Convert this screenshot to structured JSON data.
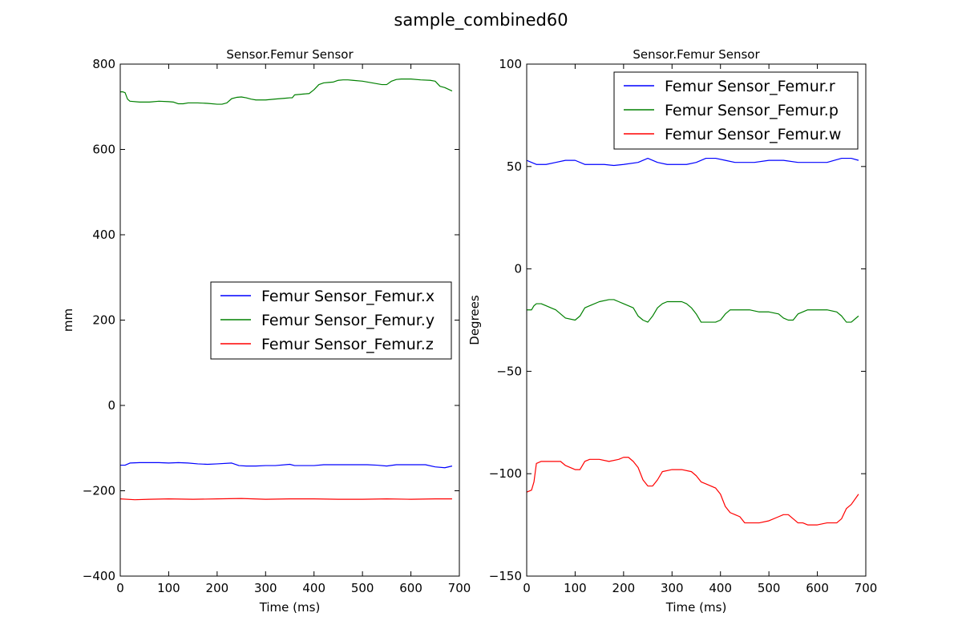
{
  "figure": {
    "title": "sample_combined60"
  },
  "chart_data": [
    {
      "type": "line",
      "title": "Sensor.Femur Sensor",
      "xlabel": "Time (ms)",
      "ylabel": "mm",
      "xlim": [
        0,
        700
      ],
      "ylim": [
        -400,
        800
      ],
      "xticks": [
        0,
        100,
        200,
        300,
        400,
        500,
        600,
        700
      ],
      "yticks": [
        -400,
        -200,
        0,
        200,
        400,
        600,
        800
      ],
      "xtick_labels": [
        "0",
        "100",
        "200",
        "300",
        "400",
        "500",
        "600",
        "700"
      ],
      "ytick_labels": [
        "−400",
        "−200",
        "0",
        "200",
        "400",
        "600",
        "800"
      ],
      "grid": false,
      "legend_position": "center-right",
      "series": [
        {
          "name": "Femur Sensor_Femur.x",
          "color": "#0000ff",
          "x": [
            0,
            10,
            20,
            40,
            60,
            80,
            100,
            120,
            140,
            160,
            180,
            200,
            230,
            245,
            260,
            280,
            300,
            320,
            350,
            360,
            380,
            400,
            420,
            450,
            480,
            510,
            530,
            550,
            570,
            600,
            630,
            650,
            670,
            685
          ],
          "y": [
            -140,
            -140,
            -135,
            -134,
            -134,
            -134,
            -135,
            -134,
            -135,
            -137,
            -138,
            -137,
            -135,
            -141,
            -142,
            -142,
            -141,
            -141,
            -138,
            -141,
            -141,
            -141,
            -139,
            -139,
            -139,
            -139,
            -140,
            -142,
            -139,
            -139,
            -139,
            -144,
            -146,
            -142
          ]
        },
        {
          "name": "Femur Sensor_Femur.y",
          "color": "#008000",
          "x": [
            0,
            5,
            10,
            15,
            20,
            40,
            60,
            80,
            100,
            110,
            120,
            130,
            140,
            160,
            180,
            200,
            210,
            220,
            230,
            240,
            250,
            260,
            270,
            280,
            300,
            320,
            340,
            350,
            355,
            360,
            380,
            390,
            400,
            410,
            420,
            430,
            440,
            450,
            460,
            470,
            480,
            500,
            520,
            540,
            550,
            560,
            570,
            580,
            600,
            620,
            640,
            650,
            660,
            670,
            685
          ],
          "y": [
            735,
            735,
            733,
            718,
            713,
            711,
            711,
            713,
            712,
            711,
            707,
            707,
            709,
            709,
            708,
            706,
            706,
            709,
            719,
            722,
            723,
            721,
            718,
            716,
            716,
            718,
            720,
            721,
            721,
            728,
            730,
            731,
            740,
            752,
            756,
            757,
            758,
            762,
            763,
            763,
            762,
            760,
            756,
            752,
            752,
            760,
            764,
            765,
            765,
            763,
            762,
            760,
            748,
            745,
            737
          ]
        },
        {
          "name": "Femur Sensor_Femur.z",
          "color": "#ff0000",
          "x": [
            0,
            30,
            60,
            100,
            150,
            200,
            250,
            300,
            350,
            400,
            450,
            500,
            550,
            600,
            650,
            685
          ],
          "y": [
            -219,
            -221,
            -220,
            -219,
            -220,
            -219,
            -218,
            -220,
            -219,
            -219,
            -220,
            -220,
            -219,
            -220,
            -219,
            -219
          ]
        }
      ]
    },
    {
      "type": "line",
      "title": "Sensor.Femur Sensor",
      "xlabel": "Time (ms)",
      "ylabel": "Degrees",
      "xlim": [
        0,
        700
      ],
      "ylim": [
        -150,
        100
      ],
      "xticks": [
        0,
        100,
        200,
        300,
        400,
        500,
        600,
        700
      ],
      "yticks": [
        -150,
        -100,
        -50,
        0,
        50,
        100
      ],
      "xtick_labels": [
        "0",
        "100",
        "200",
        "300",
        "400",
        "500",
        "600",
        "700"
      ],
      "ytick_labels": [
        "−150",
        "−100",
        "−50",
        "0",
        "50",
        "100"
      ],
      "grid": false,
      "legend_position": "top-right",
      "series": [
        {
          "name": "Femur Sensor_Femur.r",
          "color": "#0000ff",
          "x": [
            0,
            10,
            20,
            40,
            60,
            80,
            100,
            120,
            140,
            160,
            180,
            200,
            230,
            250,
            270,
            290,
            310,
            330,
            350,
            370,
            390,
            410,
            430,
            450,
            470,
            500,
            530,
            560,
            590,
            620,
            650,
            670,
            685
          ],
          "y": [
            53,
            52,
            51,
            51,
            52,
            53,
            53,
            51,
            51,
            51,
            50.5,
            51,
            52,
            54,
            52,
            51,
            51,
            51,
            52,
            54,
            54,
            53,
            52,
            52,
            52,
            53,
            53,
            52,
            52,
            52,
            54,
            54,
            53
          ]
        },
        {
          "name": "Femur Sensor_Femur.p",
          "color": "#008000",
          "x": [
            0,
            10,
            15,
            20,
            30,
            40,
            50,
            60,
            80,
            100,
            110,
            120,
            130,
            150,
            170,
            180,
            190,
            200,
            220,
            230,
            240,
            250,
            260,
            270,
            280,
            290,
            300,
            310,
            320,
            330,
            340,
            350,
            360,
            380,
            390,
            400,
            410,
            420,
            440,
            460,
            480,
            500,
            520,
            530,
            540,
            550,
            560,
            580,
            600,
            620,
            640,
            650,
            660,
            670,
            685
          ],
          "y": [
            -20,
            -20,
            -18,
            -17,
            -17,
            -18,
            -19,
            -20,
            -24,
            -25,
            -23,
            -19,
            -18,
            -16,
            -15,
            -15,
            -16,
            -17,
            -19,
            -23,
            -25,
            -26,
            -23,
            -19,
            -17,
            -16,
            -16,
            -16,
            -16,
            -17,
            -19,
            -22,
            -26,
            -26,
            -26,
            -25,
            -22,
            -20,
            -20,
            -20,
            -21,
            -21,
            -22,
            -24,
            -25,
            -25,
            -22,
            -20,
            -20,
            -20,
            -21,
            -23,
            -26,
            -26,
            -23
          ]
        },
        {
          "name": "Femur Sensor_Femur.w",
          "color": "#ff0000",
          "x": [
            0,
            10,
            15,
            20,
            30,
            50,
            70,
            80,
            100,
            110,
            120,
            130,
            150,
            170,
            190,
            200,
            210,
            220,
            230,
            240,
            250,
            260,
            270,
            280,
            300,
            320,
            340,
            350,
            360,
            370,
            390,
            400,
            410,
            420,
            430,
            440,
            450,
            460,
            480,
            500,
            520,
            530,
            540,
            550,
            560,
            570,
            580,
            600,
            620,
            640,
            650,
            660,
            670,
            685
          ],
          "y": [
            -109,
            -108,
            -104,
            -95,
            -94,
            -94,
            -94,
            -96,
            -98,
            -98,
            -94,
            -93,
            -93,
            -94,
            -93,
            -92,
            -92,
            -94,
            -97,
            -103,
            -106,
            -106,
            -103,
            -99,
            -98,
            -98,
            -99,
            -101,
            -104,
            -105,
            -107,
            -110,
            -116,
            -119,
            -120,
            -121,
            -124,
            -124,
            -124,
            -123,
            -121,
            -120,
            -120,
            -122,
            -124,
            -124,
            -125,
            -125,
            -124,
            -124,
            -122,
            -117,
            -115,
            -110
          ]
        }
      ]
    }
  ]
}
